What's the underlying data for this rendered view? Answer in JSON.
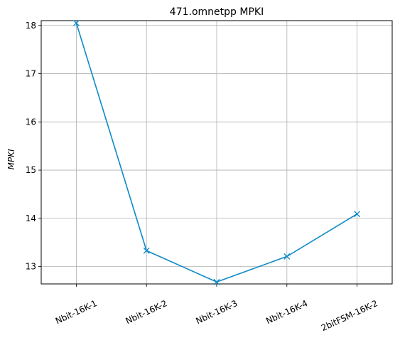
{
  "chart_data": {
    "type": "line",
    "title": "471.omnetpp MPKI",
    "xlabel": "",
    "ylabel": "MPKI",
    "categories": [
      "Nbit-16K-1",
      "Nbit-16K-2",
      "Nbit-16K-3",
      "Nbit-16K-4",
      "2bitFSM-16K-2"
    ],
    "series": [
      {
        "values": [
          18.05,
          13.33,
          12.68,
          13.21,
          14.09
        ],
        "color": "#0e8ac7",
        "marker": "x"
      }
    ],
    "ylim": [
      12.64,
      18.1
    ],
    "yticks": [
      13,
      14,
      15,
      16,
      17,
      18
    ],
    "grid": true
  }
}
